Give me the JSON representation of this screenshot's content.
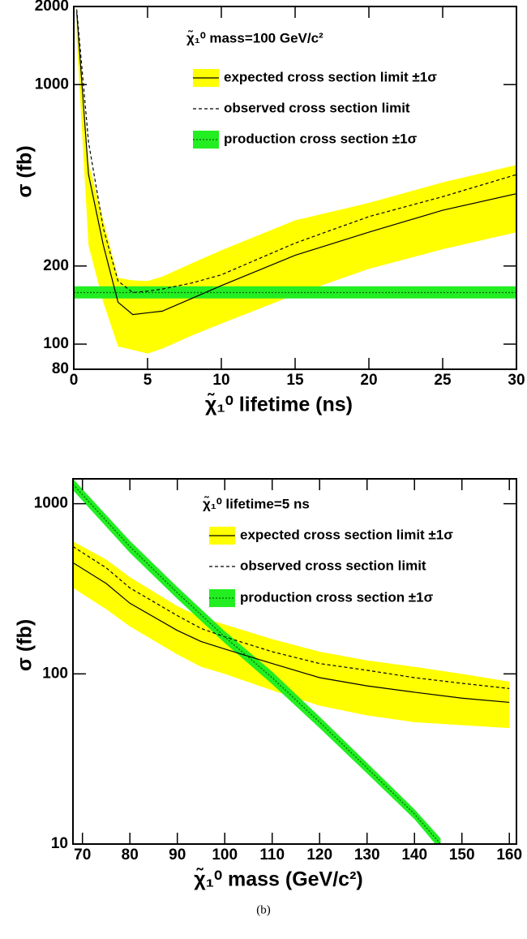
{
  "chart_data": [
    {
      "type": "line",
      "log_y": true,
      "x_label": "χ̃₁⁰ lifetime (ns)",
      "y_label": "σ (fb)",
      "legend_title": "χ̃₁⁰ mass=100 GeV/c²",
      "xlim": [
        0,
        30
      ],
      "ylim": [
        80,
        2000
      ],
      "xticks": [
        0,
        5,
        10,
        15,
        20,
        25,
        30
      ],
      "yticks": [
        80,
        100,
        200,
        1000,
        2000
      ],
      "series": [
        {
          "name": "expected cross section limit ±1σ",
          "color": "#000000",
          "band_color": "#ffff00",
          "line_style": "solid",
          "x": [
            0.2,
            1,
            2,
            3,
            4,
            5,
            6,
            8,
            10,
            15,
            20,
            25,
            30
          ],
          "values": [
            1900,
            450,
            241,
            145,
            130,
            132,
            134,
            150,
            168,
            220,
            270,
            328,
            380
          ],
          "lower": [
            1500,
            240,
            145,
            98,
            95,
            92,
            96,
            108,
            120,
            155,
            195,
            232,
            270
          ],
          "upper": [
            2000,
            500,
            300,
            180,
            176,
            175,
            182,
            205,
            230,
            300,
            350,
            420,
            490
          ]
        },
        {
          "name": "observed cross section limit",
          "color": "#000000",
          "line_style": "dashed",
          "x": [
            0.2,
            1,
            2,
            3,
            4,
            5,
            6,
            8,
            10,
            15,
            20,
            25,
            30
          ],
          "values": [
            1950,
            600,
            280,
            175,
            158,
            160,
            163,
            172,
            185,
            245,
            310,
            370,
            450
          ]
        },
        {
          "name": "production cross section ±1σ",
          "color": "#006600",
          "band_color": "#22ee22",
          "line_style": "dotted",
          "x": [
            0,
            30
          ],
          "values": [
            158,
            158
          ],
          "lower": [
            150,
            150
          ],
          "upper": [
            167,
            167
          ]
        }
      ]
    },
    {
      "type": "line",
      "log_y": true,
      "x_label": "χ̃₁⁰ mass (GeV/c²)",
      "y_label": "σ (fb)",
      "legend_title": "χ̃₁⁰ lifetime=5 ns",
      "xlim": [
        68,
        161.5
      ],
      "ylim": [
        10,
        1400
      ],
      "xticks": [
        70,
        80,
        90,
        100,
        110,
        120,
        130,
        140,
        150,
        160
      ],
      "yticks": [
        10,
        100,
        1000
      ],
      "series": [
        {
          "name": "expected cross section limit ±1σ",
          "color": "#000000",
          "band_color": "#ffff00",
          "line_style": "solid",
          "x": [
            68,
            75,
            80,
            90,
            95,
            100,
            110,
            120,
            130,
            140,
            150,
            160
          ],
          "values": [
            450,
            340,
            260,
            180,
            155,
            140,
            115,
            95,
            85,
            78,
            72,
            68
          ],
          "lower": [
            320,
            240,
            190,
            130,
            110,
            100,
            80,
            65,
            57,
            52,
            50,
            48
          ],
          "upper": [
            600,
            470,
            370,
            250,
            215,
            195,
            160,
            135,
            120,
            110,
            100,
            90
          ]
        },
        {
          "name": "observed cross section limit",
          "color": "#000000",
          "line_style": "dashed",
          "x": [
            68,
            75,
            80,
            90,
            95,
            100,
            110,
            120,
            130,
            140,
            150,
            160
          ],
          "values": [
            560,
            420,
            320,
            220,
            185,
            165,
            135,
            115,
            105,
            95,
            88,
            82
          ]
        },
        {
          "name": "production cross section ±1σ",
          "color": "#006600",
          "band_color": "#22ee22",
          "line_style": "dotted",
          "x": [
            68,
            80,
            90,
            100,
            110,
            120,
            130,
            140,
            145.5
          ],
          "values": [
            1300,
            560,
            300,
            165,
            95,
            52,
            28,
            15,
            10
          ],
          "lower": [
            1200,
            515,
            276,
            152,
            87,
            48,
            26,
            14,
            9.2
          ],
          "upper": [
            1400,
            605,
            324,
            178,
            103,
            56,
            30,
            16,
            10.8
          ]
        }
      ]
    }
  ],
  "caption": "(b)"
}
